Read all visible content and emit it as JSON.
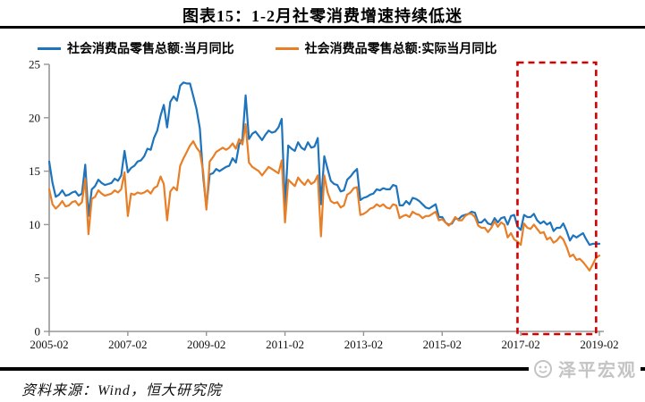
{
  "title": "图表15：1-2月社零消费增速持续低迷",
  "source_note": "资料来源：Wind，恒大研究院",
  "watermark_text": "泽平宏观",
  "colors": {
    "nominal_line": "#1d74bd",
    "real_line": "#e87f27",
    "highlight_box": "#d40000",
    "axis": "#969696",
    "separator": "#000000",
    "watermark": "#c4c4c4"
  },
  "chart_data": {
    "type": "line",
    "title": "图表15：1-2月社零消费增速持续低迷",
    "x_start": "2005-02",
    "x_end": "2019-02",
    "x_tick_labels": [
      "2005-02",
      "2007-02",
      "2009-02",
      "2011-02",
      "2013-02",
      "2015-02",
      "2017-02",
      "2019-02"
    ],
    "x_tick_month_index": [
      0,
      24,
      48,
      72,
      96,
      120,
      144,
      168
    ],
    "y_ticks": [
      0,
      5,
      10,
      15,
      20,
      25
    ],
    "ylim": [
      0,
      25
    ],
    "grid": false,
    "legend_position": "top",
    "highlight_box": {
      "from_month_index": 143,
      "to_month_index": 167,
      "label_range": "2017-02 ~ 2019-02"
    },
    "series": [
      {
        "name": "社会消费品零售总额:当月同比",
        "color": "#1d74bd",
        "values": [
          15.9,
          13.9,
          12.6,
          12.8,
          13.2,
          12.7,
          12.8,
          13.0,
          13.1,
          12.7,
          12.9,
          15.6,
          10.8,
          13.3,
          13.6,
          14.2,
          13.9,
          13.7,
          13.8,
          13.9,
          14.3,
          14.1,
          14.6,
          16.9,
          14.9,
          15.3,
          15.5,
          15.9,
          16.0,
          16.4,
          17.1,
          17.0,
          18.1,
          18.8,
          20.2,
          21.2,
          19.1,
          21.5,
          22.0,
          21.6,
          23.0,
          23.3,
          23.2,
          23.2,
          22.0,
          20.8,
          19.0,
          14.5,
          11.6,
          14.7,
          14.8,
          15.2,
          15.0,
          15.2,
          15.4,
          15.5,
          16.2,
          15.8,
          17.5,
          18.0,
          22.1,
          18.0,
          18.5,
          18.7,
          18.3,
          17.9,
          18.4,
          18.8,
          18.6,
          18.7,
          19.1,
          19.9,
          11.6,
          17.4,
          17.1,
          16.9,
          17.7,
          17.2,
          17.0,
          17.7,
          17.2,
          17.3,
          18.1,
          11.9,
          16.4,
          15.2,
          14.1,
          13.8,
          13.7,
          13.1,
          13.2,
          14.2,
          14.5,
          14.9,
          15.2,
          12.3,
          12.5,
          12.6,
          12.8,
          12.9,
          13.3,
          13.2,
          13.4,
          13.3,
          13.3,
          13.7,
          13.6,
          11.8,
          11.8,
          12.2,
          11.9,
          12.5,
          12.4,
          12.2,
          11.9,
          11.6,
          11.5,
          11.7,
          11.9,
          10.7,
          10.7,
          10.2,
          10.0,
          10.1,
          10.6,
          10.5,
          10.8,
          10.9,
          11.0,
          11.2,
          11.1,
          10.2,
          10.2,
          10.5,
          10.1,
          10.0,
          10.6,
          10.2,
          10.6,
          10.7,
          10.0,
          10.8,
          10.9,
          9.8,
          9.5,
          10.9,
          10.7,
          10.7,
          11.0,
          10.4,
          10.1,
          10.3,
          10.0,
          10.2,
          9.4,
          9.7,
          9.7,
          10.1,
          9.4,
          8.5,
          9.0,
          8.8,
          9.0,
          9.2,
          8.6,
          8.1,
          8.2,
          8.2,
          8.2
        ]
      },
      {
        "name": "社会消费品零售总额:实际当月同比",
        "color": "#e87f27",
        "values": [
          13.3,
          11.9,
          11.5,
          11.8,
          12.2,
          11.7,
          11.8,
          12.1,
          12.2,
          11.8,
          12.1,
          14.3,
          9.1,
          12.4,
          12.6,
          13.2,
          12.9,
          12.7,
          12.8,
          12.9,
          13.2,
          13.0,
          13.3,
          14.9,
          10.8,
          12.9,
          12.8,
          13.0,
          12.9,
          13.0,
          13.2,
          12.9,
          13.4,
          13.6,
          14.5,
          13.8,
          10.4,
          13.1,
          13.5,
          13.2,
          15.5,
          16.2,
          16.8,
          17.4,
          17.8,
          17.2,
          16.8,
          15.0,
          11.4,
          15.9,
          16.3,
          16.8,
          17.0,
          17.2,
          17.0,
          17.2,
          17.6,
          17.1,
          18.0,
          17.5,
          19.4,
          15.8,
          15.4,
          15.2,
          15.0,
          14.6,
          15.0,
          15.4,
          15.2,
          15.0,
          14.8,
          16.0,
          10.2,
          14.2,
          13.9,
          13.6,
          14.4,
          14.0,
          13.7,
          14.2,
          13.8,
          14.0,
          14.6,
          8.9,
          14.6,
          13.0,
          12.2,
          12.0,
          12.1,
          11.6,
          11.8,
          12.8,
          13.0,
          13.4,
          13.5,
          10.9,
          11.0,
          11.2,
          11.5,
          11.6,
          11.9,
          11.7,
          11.9,
          11.6,
          11.5,
          11.9,
          11.8,
          10.6,
          10.8,
          10.9,
          10.7,
          11.2,
          11.0,
          10.9,
          10.6,
          10.8,
          10.8,
          11.0,
          11.2,
          10.4,
          10.5,
          10.2,
          9.9,
          10.2,
          10.7,
          10.4,
          10.4,
          10.8,
          11.0,
          11.0,
          10.7,
          9.9,
          9.7,
          9.7,
          9.3,
          9.7,
          10.3,
          9.8,
          10.2,
          10.0,
          8.8,
          9.2,
          8.6,
          8.4,
          8.1,
          10.1,
          9.7,
          9.6,
          10.0,
          9.6,
          9.2,
          9.3,
          8.6,
          8.8,
          8.3,
          8.5,
          8.9,
          8.6,
          7.9,
          7.0,
          7.2,
          6.7,
          6.8,
          6.5,
          6.1,
          5.7,
          6.3,
          6.9,
          7.1
        ]
      }
    ]
  }
}
